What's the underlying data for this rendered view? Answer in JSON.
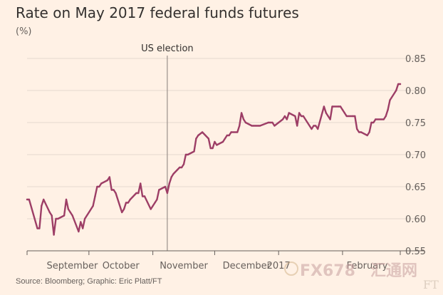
{
  "title": "Rate on May 2017 federal funds futures",
  "unit_label": "(%)",
  "source": "Source: Bloomberg; Graphic: Eric Platt/FT",
  "colors": {
    "background": "#fff1e5",
    "line": "#9d3e66",
    "grid": "#e6d9ce",
    "axis": "#66605c"
  },
  "watermark": {
    "brand": "FX678",
    "chinese": "汇通网",
    "ft": "FT"
  },
  "chart_data": {
    "type": "line",
    "title": "Rate on May 2017 federal funds futures",
    "xlabel": "",
    "ylabel": "(%)",
    "ylim": [
      0.55,
      0.85
    ],
    "y_ticks": [
      0.55,
      0.6,
      0.65,
      0.7,
      0.75,
      0.8,
      0.85
    ],
    "y_tick_labels": [
      "0.55",
      "0.60",
      "0.65",
      "0.70",
      "0.75",
      "0.80",
      "0.85"
    ],
    "x_tick_labels": [
      "September",
      "October",
      "November",
      "December",
      "2017",
      "February"
    ],
    "grid": true,
    "annotation": {
      "label": "US election",
      "x": "2016-11-08"
    },
    "series": [
      {
        "x": [
          "2016-09-01",
          "2016-09-02",
          "2016-09-06",
          "2016-09-07",
          "2016-09-08",
          "2016-09-09",
          "2016-09-12",
          "2016-09-13",
          "2016-09-14",
          "2016-09-15",
          "2016-09-16",
          "2016-09-19",
          "2016-09-20",
          "2016-09-21",
          "2016-09-22",
          "2016-09-23",
          "2016-09-26",
          "2016-09-27",
          "2016-09-28",
          "2016-09-29",
          "2016-09-30",
          "2016-10-03",
          "2016-10-04",
          "2016-10-05",
          "2016-10-06",
          "2016-10-07",
          "2016-10-10",
          "2016-10-11",
          "2016-10-12",
          "2016-10-13",
          "2016-10-14",
          "2016-10-17",
          "2016-10-18",
          "2016-10-19",
          "2016-10-20",
          "2016-10-21",
          "2016-10-24",
          "2016-10-25",
          "2016-10-26",
          "2016-10-27",
          "2016-10-28",
          "2016-10-31",
          "2016-11-01",
          "2016-11-02",
          "2016-11-03",
          "2016-11-04",
          "2016-11-07",
          "2016-11-08",
          "2016-11-09",
          "2016-11-10",
          "2016-11-11",
          "2016-11-14",
          "2016-11-15",
          "2016-11-16",
          "2016-11-17",
          "2016-11-18",
          "2016-11-21",
          "2016-11-22",
          "2016-11-23",
          "2016-11-25",
          "2016-11-28",
          "2016-11-29",
          "2016-11-30",
          "2016-12-01",
          "2016-12-02",
          "2016-12-05",
          "2016-12-06",
          "2016-12-07",
          "2016-12-08",
          "2016-12-09",
          "2016-12-12",
          "2016-12-13",
          "2016-12-14",
          "2016-12-15",
          "2016-12-16",
          "2016-12-19",
          "2016-12-20",
          "2016-12-21",
          "2016-12-22",
          "2016-12-23",
          "2016-12-27",
          "2016-12-28",
          "2016-12-29",
          "2016-12-30",
          "2017-01-03",
          "2017-01-04",
          "2017-01-05",
          "2017-01-06",
          "2017-01-09",
          "2017-01-10",
          "2017-01-11",
          "2017-01-12",
          "2017-01-13",
          "2017-01-17",
          "2017-01-18",
          "2017-01-19",
          "2017-01-20",
          "2017-01-23",
          "2017-01-24",
          "2017-01-25",
          "2017-01-26",
          "2017-01-27",
          "2017-01-30",
          "2017-01-31",
          "2017-02-01",
          "2017-02-02",
          "2017-02-03",
          "2017-02-06",
          "2017-02-07",
          "2017-02-08",
          "2017-02-09",
          "2017-02-10",
          "2017-02-13",
          "2017-02-14",
          "2017-02-15",
          "2017-02-16",
          "2017-02-17",
          "2017-02-21",
          "2017-02-22",
          "2017-02-23",
          "2017-02-24",
          "2017-02-27",
          "2017-02-28",
          "2017-03-01"
        ],
        "values": [
          0.63,
          0.63,
          0.585,
          0.585,
          0.62,
          0.63,
          0.61,
          0.605,
          0.575,
          0.6,
          0.6,
          0.605,
          0.63,
          0.615,
          0.61,
          0.605,
          0.58,
          0.595,
          0.585,
          0.6,
          0.605,
          0.62,
          0.635,
          0.65,
          0.65,
          0.655,
          0.66,
          0.665,
          0.645,
          0.645,
          0.64,
          0.61,
          0.615,
          0.625,
          0.625,
          0.63,
          0.64,
          0.64,
          0.655,
          0.635,
          0.635,
          0.615,
          0.62,
          0.625,
          0.63,
          0.645,
          0.65,
          0.64,
          0.655,
          0.665,
          0.67,
          0.68,
          0.68,
          0.685,
          0.7,
          0.7,
          0.705,
          0.725,
          0.73,
          0.735,
          0.725,
          0.71,
          0.71,
          0.72,
          0.715,
          0.72,
          0.725,
          0.73,
          0.73,
          0.735,
          0.735,
          0.745,
          0.765,
          0.755,
          0.75,
          0.745,
          0.745,
          0.745,
          0.745,
          0.745,
          0.75,
          0.75,
          0.75,
          0.745,
          0.755,
          0.76,
          0.755,
          0.765,
          0.76,
          0.745,
          0.765,
          0.76,
          0.76,
          0.74,
          0.745,
          0.745,
          0.74,
          0.775,
          0.765,
          0.76,
          0.755,
          0.775,
          0.775,
          0.775,
          0.77,
          0.765,
          0.76,
          0.76,
          0.76,
          0.74,
          0.735,
          0.735,
          0.73,
          0.735,
          0.75,
          0.75,
          0.755,
          0.755,
          0.76,
          0.77,
          0.785,
          0.8,
          0.81,
          0.81
        ]
      }
    ]
  }
}
